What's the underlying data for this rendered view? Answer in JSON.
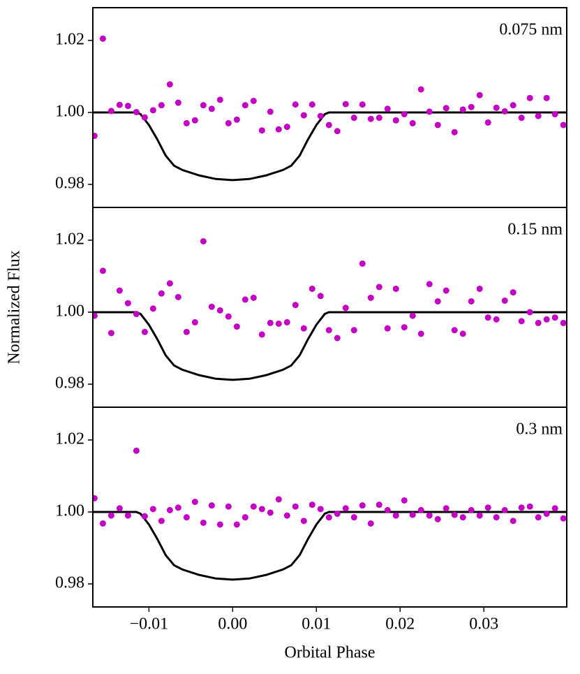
{
  "chart_data": [
    {
      "type": "scatter",
      "annotation": "0.075 nm",
      "color": "#c400c4",
      "x": [
        -0.0165,
        -0.0155,
        -0.0145,
        -0.0135,
        -0.0125,
        -0.0115,
        -0.0105,
        -0.0095,
        -0.0085,
        -0.0075,
        -0.0065,
        -0.0055,
        -0.0045,
        -0.0035,
        -0.0025,
        -0.0015,
        -0.0005,
        0.0005,
        0.0015,
        0.0025,
        0.0035,
        0.0045,
        0.0055,
        0.0065,
        0.0075,
        0.0085,
        0.0095,
        0.0105,
        0.0115,
        0.0125,
        0.0135,
        0.0145,
        0.0155,
        0.0165,
        0.0175,
        0.0185,
        0.0195,
        0.0205,
        0.0215,
        0.0225,
        0.0235,
        0.0245,
        0.0255,
        0.0265,
        0.0275,
        0.0285,
        0.0295,
        0.0305,
        0.0315,
        0.0325,
        0.0335,
        0.0345,
        0.0355,
        0.0365,
        0.0375,
        0.0385,
        0.0395
      ],
      "values": [
        0.9935,
        1.0205,
        1.0004,
        1.0021,
        1.0018,
        1.0001,
        0.9986,
        1.0006,
        1.002,
        1.0078,
        1.0027,
        0.997,
        0.9978,
        1.002,
        1.001,
        1.0035,
        0.997,
        0.998,
        1.002,
        1.0032,
        0.995,
        1.0002,
        0.9953,
        0.996,
        1.0022,
        0.9992,
        1.0022,
        0.999,
        0.9965,
        0.9948,
        1.0023,
        0.9985,
        1.0022,
        0.9982,
        0.9985,
        1.001,
        0.9978,
        0.9995,
        0.997,
        1.0064,
        1.0002,
        0.9965,
        1.0012,
        0.9945,
        1.0008,
        1.0015,
        1.0048,
        0.9972,
        1.0013,
        1.0003,
        1.002,
        0.9985,
        1.004,
        0.999,
        1.004,
        0.9995,
        0.9965
      ],
      "model": {
        "color": "#000000",
        "x": [
          -0.0167,
          -0.0115,
          -0.011,
          -0.01,
          -0.009,
          -0.008,
          -0.007,
          -0.006,
          -0.004,
          -0.002,
          0,
          0.002,
          0.004,
          0.006,
          0.007,
          0.008,
          0.009,
          0.01,
          0.011,
          0.0115,
          0.0399
        ],
        "values": [
          1,
          1,
          0.9995,
          0.9965,
          0.9925,
          0.988,
          0.9852,
          0.984,
          0.9825,
          0.9815,
          0.9812,
          0.9815,
          0.9825,
          0.984,
          0.9852,
          0.988,
          0.9925,
          0.9965,
          0.9995,
          1,
          1
        ]
      },
      "xlim": [
        -0.0167,
        0.0399
      ],
      "ylim": [
        0.9736,
        1.0291
      ],
      "yticks": [
        0.98,
        {
          "value": 1,
          "label": "1.00"
        },
        1.02
      ]
    },
    {
      "type": "scatter",
      "annotation": "0.15 nm",
      "color": "#c400c4",
      "ylabel": "Normalized Flux",
      "x": [
        -0.0165,
        -0.0155,
        -0.0145,
        -0.0135,
        -0.0125,
        -0.0115,
        -0.0105,
        -0.0095,
        -0.0085,
        -0.0075,
        -0.0065,
        -0.0055,
        -0.0045,
        -0.0035,
        -0.0025,
        -0.0015,
        -0.0005,
        0.0005,
        0.0015,
        0.0025,
        0.0035,
        0.0045,
        0.0055,
        0.0065,
        0.0075,
        0.0085,
        0.0095,
        0.0105,
        0.0115,
        0.0125,
        0.0135,
        0.0145,
        0.0155,
        0.0165,
        0.0175,
        0.0185,
        0.0195,
        0.0205,
        0.0215,
        0.0225,
        0.0235,
        0.0245,
        0.0255,
        0.0265,
        0.0275,
        0.0285,
        0.0295,
        0.0305,
        0.0315,
        0.0325,
        0.0335,
        0.0345,
        0.0355,
        0.0365,
        0.0375,
        0.0385,
        0.0395
      ],
      "values": [
        0.999,
        1.0115,
        0.9942,
        1.006,
        1.0025,
        0.9995,
        0.9945,
        1.001,
        1.0052,
        1.008,
        1.0042,
        0.9945,
        0.9972,
        1.0197,
        1.0015,
        1.0005,
        0.9988,
        0.996,
        1.0035,
        1.004,
        0.9938,
        0.997,
        0.9968,
        0.9972,
        1.002,
        0.9955,
        1.0065,
        1.0045,
        0.995,
        0.9928,
        1.0012,
        0.995,
        1.0135,
        1.004,
        1.007,
        0.9955,
        1.0065,
        0.9958,
        0.999,
        0.994,
        1.0078,
        1.003,
        1.006,
        0.995,
        0.994,
        1.003,
        1.0065,
        0.9985,
        0.998,
        1.0032,
        1.0055,
        0.9975,
        1.0,
        0.997,
        0.998,
        0.9985,
        0.997
      ],
      "model": {
        "color": "#000000",
        "x": [
          -0.0167,
          -0.0115,
          -0.011,
          -0.01,
          -0.009,
          -0.008,
          -0.007,
          -0.006,
          -0.004,
          -0.002,
          0,
          0.002,
          0.004,
          0.006,
          0.007,
          0.008,
          0.009,
          0.01,
          0.011,
          0.0115,
          0.0399
        ],
        "values": [
          1,
          1,
          0.9995,
          0.9965,
          0.9925,
          0.988,
          0.9852,
          0.984,
          0.9825,
          0.9815,
          0.9812,
          0.9815,
          0.9825,
          0.984,
          0.9852,
          0.988,
          0.9925,
          0.9965,
          0.9995,
          1,
          1
        ]
      },
      "xlim": [
        -0.0167,
        0.0399
      ],
      "ylim": [
        0.9736,
        1.0291
      ],
      "yticks": [
        0.98,
        {
          "value": 1,
          "label": "1.00"
        },
        1.02
      ]
    },
    {
      "type": "scatter",
      "annotation": "0.3 nm",
      "color": "#c400c4",
      "xlabel": "Orbital Phase",
      "x": [
        -0.0165,
        -0.0155,
        -0.0145,
        -0.0135,
        -0.0125,
        -0.0115,
        -0.0105,
        -0.0095,
        -0.0085,
        -0.0075,
        -0.0065,
        -0.0055,
        -0.0045,
        -0.0035,
        -0.0025,
        -0.0015,
        -0.0005,
        0.0005,
        0.0015,
        0.0025,
        0.0035,
        0.0045,
        0.0055,
        0.0065,
        0.0075,
        0.0085,
        0.0095,
        0.0105,
        0.0115,
        0.0125,
        0.0135,
        0.0145,
        0.0155,
        0.0165,
        0.0175,
        0.0185,
        0.0195,
        0.0205,
        0.0215,
        0.0225,
        0.0235,
        0.0245,
        0.0255,
        0.0265,
        0.0275,
        0.0285,
        0.0295,
        0.0305,
        0.0315,
        0.0325,
        0.0335,
        0.0345,
        0.0355,
        0.0365,
        0.0375,
        0.0385,
        0.0395
      ],
      "values": [
        1.0038,
        0.9968,
        0.999,
        1.001,
        0.999,
        1.017,
        0.9988,
        1.0008,
        0.9975,
        1.0005,
        1.0012,
        0.9985,
        1.0028,
        0.997,
        1.0018,
        0.9965,
        1.0015,
        0.9965,
        0.9985,
        1.0015,
        1.0008,
        0.9998,
        1.0035,
        0.999,
        1.0015,
        0.9975,
        1.002,
        1.0008,
        0.9985,
        0.9995,
        1.001,
        0.9985,
        1.0018,
        0.9968,
        1.002,
        1.0005,
        0.999,
        1.0032,
        0.9992,
        1.0005,
        0.999,
        0.998,
        1.001,
        0.9992,
        0.9985,
        1.0005,
        0.999,
        1.0012,
        0.9985,
        1.0005,
        0.9975,
        1.0012,
        1.0015,
        0.9985,
        0.9995,
        1.001,
        0.9982
      ],
      "model": {
        "color": "#000000",
        "x": [
          -0.0167,
          -0.0115,
          -0.011,
          -0.01,
          -0.009,
          -0.008,
          -0.007,
          -0.006,
          -0.004,
          -0.002,
          0,
          0.002,
          0.004,
          0.006,
          0.007,
          0.008,
          0.009,
          0.01,
          0.011,
          0.0115,
          0.0399
        ],
        "values": [
          1,
          1,
          0.9995,
          0.9965,
          0.9925,
          0.988,
          0.9852,
          0.984,
          0.9825,
          0.9815,
          0.9812,
          0.9815,
          0.9825,
          0.984,
          0.9852,
          0.988,
          0.9925,
          0.9965,
          0.9995,
          1,
          1
        ]
      },
      "xlim": [
        -0.0167,
        0.0399
      ],
      "ylim": [
        0.9736,
        1.0291
      ],
      "yticks": [
        0.98,
        {
          "value": 1,
          "label": "1.00"
        },
        1.02
      ],
      "xticks": [
        {
          "value": -0.01,
          "label": "−0.01"
        },
        {
          "value": 0,
          "label": "0.00"
        },
        0.01,
        0.02,
        0.03
      ]
    }
  ]
}
